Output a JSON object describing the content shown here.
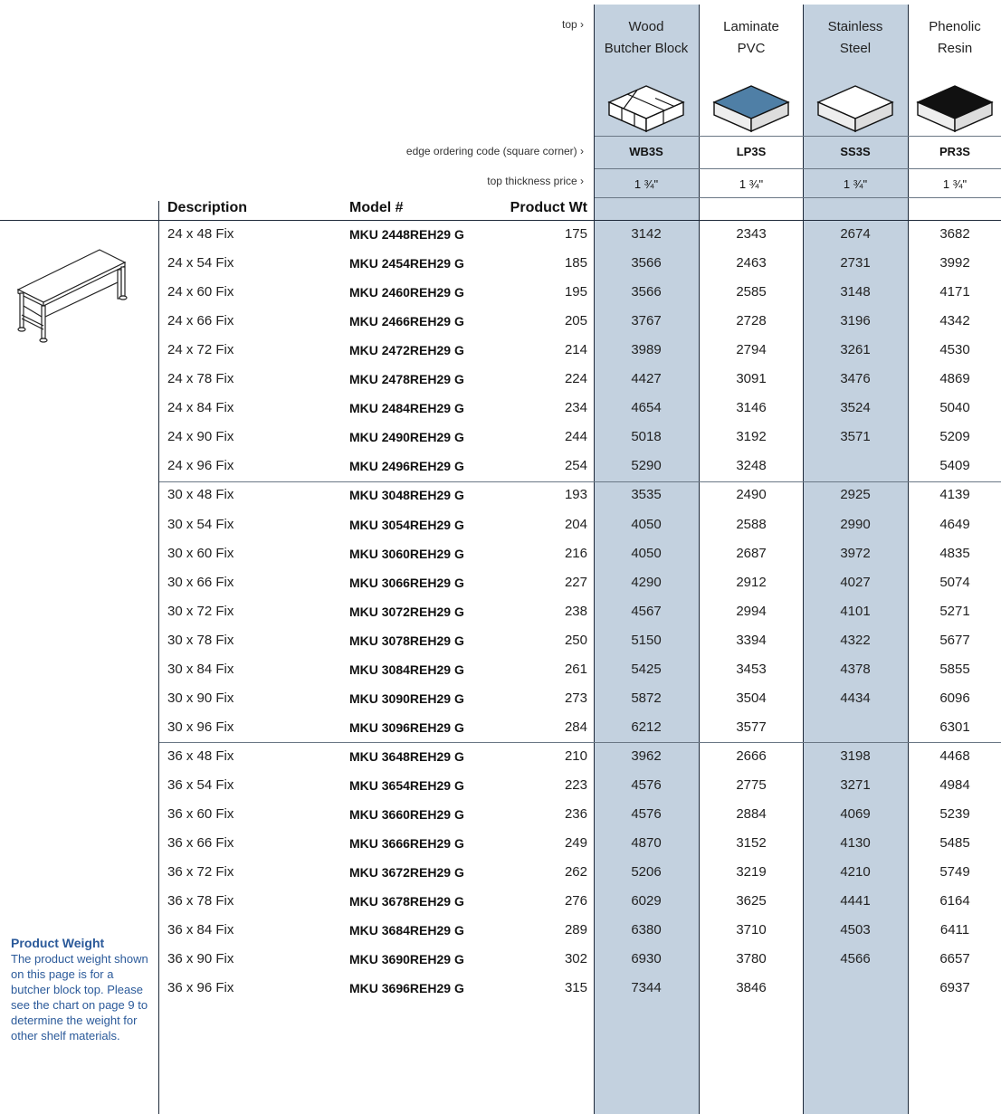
{
  "header": {
    "top_label": "top ›",
    "edge_code_label": "edge ordering code (square corner) ›",
    "thickness_label": "top thickness price ›",
    "materials": [
      {
        "line1": "Wood",
        "line2": "Butcher Block",
        "code": "WB3S",
        "thickness": "1 ¾\"",
        "swatch": "wood"
      },
      {
        "line1": "Laminate",
        "line2": "PVC",
        "code": "LP3S",
        "thickness": "1 ¾\"",
        "swatch": "laminate"
      },
      {
        "line1": "Stainless",
        "line2": "Steel",
        "code": "SS3S",
        "thickness": "1 ¾\"",
        "swatch": "steel"
      },
      {
        "line1": "Phenolic",
        "line2": "Resin",
        "code": "PR3S",
        "thickness": "1 ¾\"",
        "swatch": "phenolic"
      }
    ]
  },
  "columns": {
    "description": "Description",
    "model": "Model #",
    "weight": "Product Wt"
  },
  "rows": [
    {
      "desc": "24 x 48 Fix",
      "model": "MKU 2448REH29 G",
      "wt": "175",
      "prices": [
        "3142",
        "2343",
        "2674",
        "3682"
      ]
    },
    {
      "desc": "24 x 54 Fix",
      "model": "MKU 2454REH29 G",
      "wt": "185",
      "prices": [
        "3566",
        "2463",
        "2731",
        "3992"
      ]
    },
    {
      "desc": "24 x 60 Fix",
      "model": "MKU 2460REH29 G",
      "wt": "195",
      "prices": [
        "3566",
        "2585",
        "3148",
        "4171"
      ]
    },
    {
      "desc": "24 x 66 Fix",
      "model": "MKU 2466REH29 G",
      "wt": "205",
      "prices": [
        "3767",
        "2728",
        "3196",
        "4342"
      ]
    },
    {
      "desc": "24 x 72 Fix",
      "model": "MKU 2472REH29 G",
      "wt": "214",
      "prices": [
        "3989",
        "2794",
        "3261",
        "4530"
      ]
    },
    {
      "desc": "24 x 78 Fix",
      "model": "MKU 2478REH29 G",
      "wt": "224",
      "prices": [
        "4427",
        "3091",
        "3476",
        "4869"
      ]
    },
    {
      "desc": "24 x 84 Fix",
      "model": "MKU 2484REH29 G",
      "wt": "234",
      "prices": [
        "4654",
        "3146",
        "3524",
        "5040"
      ]
    },
    {
      "desc": "24 x 90 Fix",
      "model": "MKU 2490REH29 G",
      "wt": "244",
      "prices": [
        "5018",
        "3192",
        "3571",
        "5209"
      ]
    },
    {
      "desc": "24 x 96 Fix",
      "model": "MKU 2496REH29 G",
      "wt": "254",
      "prices": [
        "5290",
        "3248",
        "",
        "5409"
      ]
    },
    {
      "desc": "30 x 48 Fix",
      "model": "MKU 3048REH29 G",
      "wt": "193",
      "prices": [
        "3535",
        "2490",
        "2925",
        "4139"
      ]
    },
    {
      "desc": "30 x 54 Fix",
      "model": "MKU 3054REH29 G",
      "wt": "204",
      "prices": [
        "4050",
        "2588",
        "2990",
        "4649"
      ]
    },
    {
      "desc": "30 x 60 Fix",
      "model": "MKU 3060REH29 G",
      "wt": "216",
      "prices": [
        "4050",
        "2687",
        "3972",
        "4835"
      ]
    },
    {
      "desc": "30 x 66 Fix",
      "model": "MKU 3066REH29 G",
      "wt": "227",
      "prices": [
        "4290",
        "2912",
        "4027",
        "5074"
      ]
    },
    {
      "desc": "30 x 72 Fix",
      "model": "MKU 3072REH29 G",
      "wt": "238",
      "prices": [
        "4567",
        "2994",
        "4101",
        "5271"
      ]
    },
    {
      "desc": "30 x 78 Fix",
      "model": "MKU 3078REH29 G",
      "wt": "250",
      "prices": [
        "5150",
        "3394",
        "4322",
        "5677"
      ]
    },
    {
      "desc": "30 x 84 Fix",
      "model": "MKU 3084REH29 G",
      "wt": "261",
      "prices": [
        "5425",
        "3453",
        "4378",
        "5855"
      ]
    },
    {
      "desc": "30 x 90 Fix",
      "model": "MKU 3090REH29 G",
      "wt": "273",
      "prices": [
        "5872",
        "3504",
        "4434",
        "6096"
      ]
    },
    {
      "desc": "30 x 96 Fix",
      "model": "MKU 3096REH29 G",
      "wt": "284",
      "prices": [
        "6212",
        "3577",
        "",
        "6301"
      ]
    },
    {
      "desc": "36 x 48 Fix",
      "model": "MKU 3648REH29 G",
      "wt": "210",
      "prices": [
        "3962",
        "2666",
        "3198",
        "4468"
      ]
    },
    {
      "desc": "36 x 54 Fix",
      "model": "MKU 3654REH29 G",
      "wt": "223",
      "prices": [
        "4576",
        "2775",
        "3271",
        "4984"
      ]
    },
    {
      "desc": "36 x 60 Fix",
      "model": "MKU 3660REH29 G",
      "wt": "236",
      "prices": [
        "4576",
        "2884",
        "4069",
        "5239"
      ]
    },
    {
      "desc": "36 x 66 Fix",
      "model": "MKU 3666REH29 G",
      "wt": "249",
      "prices": [
        "4870",
        "3152",
        "4130",
        "5485"
      ]
    },
    {
      "desc": "36 x 72 Fix",
      "model": "MKU 3672REH29 G",
      "wt": "262",
      "prices": [
        "5206",
        "3219",
        "4210",
        "5749"
      ]
    },
    {
      "desc": "36 x 78 Fix",
      "model": "MKU 3678REH29 G",
      "wt": "276",
      "prices": [
        "6029",
        "3625",
        "4441",
        "6164"
      ]
    },
    {
      "desc": "36 x 84 Fix",
      "model": "MKU 3684REH29 G",
      "wt": "289",
      "prices": [
        "6380",
        "3710",
        "4503",
        "6411"
      ]
    },
    {
      "desc": "36 x 90 Fix",
      "model": "MKU 3690REH29 G",
      "wt": "302",
      "prices": [
        "6930",
        "3780",
        "4566",
        "6657"
      ]
    },
    {
      "desc": "36 x 96 Fix",
      "model": "MKU 3696REH29 G",
      "wt": "315",
      "prices": [
        "7344",
        "3846",
        "",
        "6937"
      ]
    }
  ],
  "note": {
    "title": "Product Weight",
    "body": "The product weight shown on this page is for a butcher block top. Please see the chart on page 9 to determine the weight for other shelf materials."
  },
  "colors": {
    "shade": "#c3d1df",
    "laminate": "#4f7fa6",
    "note": "#2b5a9a"
  }
}
